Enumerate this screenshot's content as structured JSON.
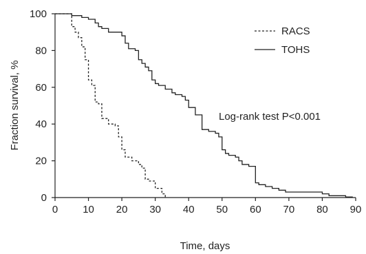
{
  "chart_data": {
    "type": "line",
    "title": "",
    "xlabel": "Time, days",
    "ylabel": "Fraction survival, %",
    "xlim": [
      0,
      90
    ],
    "ylim": [
      0,
      100
    ],
    "x_ticks": [
      0,
      10,
      20,
      30,
      40,
      50,
      60,
      70,
      80,
      90
    ],
    "y_ticks": [
      0,
      20,
      40,
      60,
      80,
      100
    ],
    "grid": false,
    "legend_position": "top-right",
    "annotation": "Log-rank test P<0.001",
    "series": [
      {
        "name": "RACS",
        "style": "dashed",
        "color": "#222222",
        "points": [
          [
            0,
            100
          ],
          [
            5,
            100
          ],
          [
            5,
            93
          ],
          [
            6,
            93
          ],
          [
            6,
            90
          ],
          [
            7,
            90
          ],
          [
            7,
            87
          ],
          [
            8,
            87
          ],
          [
            8,
            82
          ],
          [
            9,
            82
          ],
          [
            9,
            75
          ],
          [
            10,
            75
          ],
          [
            10,
            64
          ],
          [
            11,
            64
          ],
          [
            11,
            61
          ],
          [
            12,
            61
          ],
          [
            12,
            52
          ],
          [
            13,
            52
          ],
          [
            13,
            51
          ],
          [
            14,
            51
          ],
          [
            14,
            43
          ],
          [
            16,
            43
          ],
          [
            16,
            40
          ],
          [
            18,
            40
          ],
          [
            18,
            39
          ],
          [
            19,
            39
          ],
          [
            19,
            33
          ],
          [
            20,
            33
          ],
          [
            20,
            26
          ],
          [
            21,
            26
          ],
          [
            21,
            22
          ],
          [
            23,
            22
          ],
          [
            23,
            20
          ],
          [
            25,
            20
          ],
          [
            25,
            18
          ],
          [
            26,
            18
          ],
          [
            26,
            16
          ],
          [
            27,
            16
          ],
          [
            27,
            10
          ],
          [
            28,
            10
          ],
          [
            28,
            9
          ],
          [
            30,
            9
          ],
          [
            30,
            5
          ],
          [
            32,
            5
          ],
          [
            32,
            2
          ],
          [
            33,
            2
          ],
          [
            33,
            0
          ]
        ]
      },
      {
        "name": "TOHS",
        "style": "solid",
        "color": "#222222",
        "points": [
          [
            0,
            100
          ],
          [
            5,
            100
          ],
          [
            5,
            99
          ],
          [
            8,
            99
          ],
          [
            8,
            98
          ],
          [
            10,
            98
          ],
          [
            10,
            97
          ],
          [
            12,
            97
          ],
          [
            12,
            95
          ],
          [
            13,
            95
          ],
          [
            13,
            93
          ],
          [
            14,
            93
          ],
          [
            14,
            92
          ],
          [
            16,
            92
          ],
          [
            16,
            90
          ],
          [
            20,
            90
          ],
          [
            20,
            88
          ],
          [
            21,
            88
          ],
          [
            21,
            84
          ],
          [
            22,
            84
          ],
          [
            22,
            81
          ],
          [
            24,
            81
          ],
          [
            24,
            80
          ],
          [
            25,
            80
          ],
          [
            25,
            75
          ],
          [
            26,
            75
          ],
          [
            26,
            73
          ],
          [
            27,
            73
          ],
          [
            27,
            71
          ],
          [
            28,
            71
          ],
          [
            28,
            69
          ],
          [
            29,
            69
          ],
          [
            29,
            64
          ],
          [
            30,
            64
          ],
          [
            30,
            62
          ],
          [
            31,
            62
          ],
          [
            31,
            61
          ],
          [
            33,
            61
          ],
          [
            33,
            59
          ],
          [
            35,
            59
          ],
          [
            35,
            57
          ],
          [
            36,
            57
          ],
          [
            36,
            56
          ],
          [
            38,
            56
          ],
          [
            38,
            55
          ],
          [
            39,
            55
          ],
          [
            39,
            53
          ],
          [
            40,
            53
          ],
          [
            40,
            49
          ],
          [
            42,
            49
          ],
          [
            42,
            45
          ],
          [
            44,
            45
          ],
          [
            44,
            37
          ],
          [
            46,
            37
          ],
          [
            46,
            36
          ],
          [
            48,
            36
          ],
          [
            48,
            35
          ],
          [
            49,
            35
          ],
          [
            49,
            33
          ],
          [
            50,
            33
          ],
          [
            50,
            26
          ],
          [
            51,
            26
          ],
          [
            51,
            24
          ],
          [
            52,
            24
          ],
          [
            52,
            23
          ],
          [
            54,
            23
          ],
          [
            54,
            22
          ],
          [
            55,
            22
          ],
          [
            55,
            20
          ],
          [
            56,
            20
          ],
          [
            56,
            18
          ],
          [
            58,
            18
          ],
          [
            58,
            17
          ],
          [
            60,
            17
          ],
          [
            60,
            8
          ],
          [
            61,
            8
          ],
          [
            61,
            7
          ],
          [
            63,
            7
          ],
          [
            63,
            6
          ],
          [
            65,
            6
          ],
          [
            65,
            5
          ],
          [
            67,
            5
          ],
          [
            67,
            4
          ],
          [
            69,
            4
          ],
          [
            69,
            3
          ],
          [
            80,
            3
          ],
          [
            80,
            2
          ],
          [
            82,
            2
          ],
          [
            82,
            1
          ],
          [
            87,
            1
          ],
          [
            87,
            0.3
          ],
          [
            89,
            0.3
          ],
          [
            89,
            0
          ]
        ]
      }
    ]
  }
}
